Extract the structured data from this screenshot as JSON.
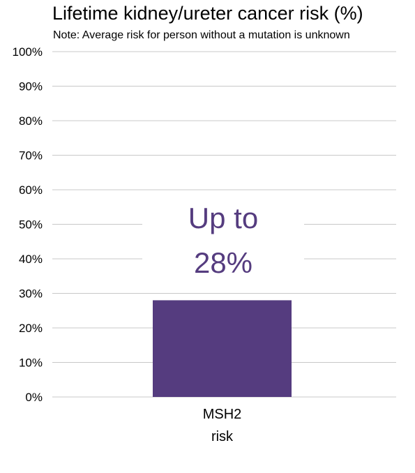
{
  "chart_data": {
    "type": "bar",
    "title": "Lifetime kidney/ureter cancer risk (%)",
    "subtitle": "Note: Average risk for person without a mutation is unknown",
    "categories": [
      [
        "MSH2",
        "risk"
      ]
    ],
    "values": [
      28
    ],
    "ylim": [
      0,
      100
    ],
    "yticks": [
      "0%",
      "10%",
      "20%",
      "30%",
      "40%",
      "50%",
      "60%",
      "70%",
      "80%",
      "90%",
      "100%"
    ],
    "annotation": [
      "Up to",
      "28%"
    ],
    "grid": true,
    "bar_color": "#553c7f",
    "annotation_color": "#553c7f",
    "grid_color": "#c8c8c8"
  }
}
